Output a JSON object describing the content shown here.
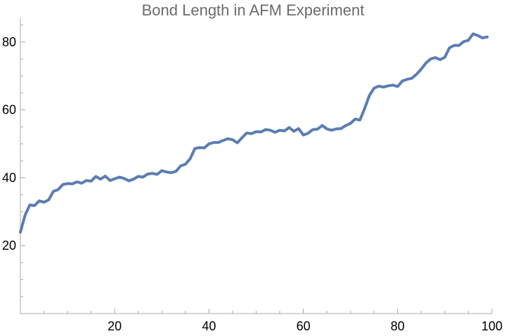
{
  "chart_data": {
    "type": "line",
    "title": "Bond Length in AFM Experiment",
    "xlabel": "",
    "ylabel": "",
    "xlim": [
      0,
      100
    ],
    "ylim": [
      0,
      87
    ],
    "x_ticks": [
      20,
      40,
      60,
      80,
      100
    ],
    "y_ticks": [
      20,
      40,
      60,
      80
    ],
    "grid": false,
    "line_color": "#5b7db1",
    "series": [
      {
        "x": [
          0,
          1,
          2,
          3,
          4,
          5,
          6,
          7,
          8,
          9,
          10,
          11,
          12,
          13,
          14,
          15,
          16,
          17,
          18,
          19,
          20,
          21,
          22,
          23,
          24,
          25,
          26,
          27,
          28,
          29,
          30,
          31,
          32,
          33,
          34,
          35,
          36,
          37,
          38,
          39,
          40,
          41,
          42,
          43,
          44,
          45,
          46,
          47,
          48,
          49,
          50,
          51,
          52,
          53,
          54,
          55,
          56,
          57,
          58,
          59,
          60,
          61,
          62,
          63,
          64,
          65,
          66,
          67,
          68,
          69,
          70,
          71,
          72,
          73,
          74,
          75,
          76,
          77,
          78,
          79,
          80,
          81,
          82,
          83,
          84,
          85,
          86,
          87,
          88,
          89,
          90,
          91,
          92,
          93,
          94,
          95,
          96,
          97,
          98,
          99
        ],
        "values": [
          24.0,
          29.0,
          32.0,
          31.8,
          33.2,
          32.8,
          33.5,
          36.0,
          36.5,
          38.0,
          38.3,
          38.2,
          38.8,
          38.4,
          39.2,
          39.0,
          40.4,
          39.6,
          40.5,
          39.2,
          39.7,
          40.2,
          39.8,
          39.1,
          39.6,
          40.4,
          40.2,
          41.1,
          41.3,
          41.0,
          42.1,
          41.7,
          41.5,
          41.9,
          43.5,
          44.0,
          45.6,
          48.6,
          48.9,
          48.8,
          50.0,
          50.4,
          50.4,
          51.0,
          51.5,
          51.2,
          50.3,
          51.8,
          53.2,
          53.0,
          53.6,
          53.5,
          54.2,
          54.0,
          53.4,
          54.0,
          53.8,
          54.8,
          53.7,
          54.5,
          52.6,
          53.1,
          54.2,
          54.3,
          55.4,
          54.4,
          54.0,
          54.4,
          54.5,
          55.4,
          56.0,
          57.3,
          57.0,
          60.4,
          64.2,
          66.4,
          67.0,
          66.7,
          67.1,
          67.3,
          66.9,
          68.5,
          69.0,
          69.3,
          70.5,
          72.0,
          73.8,
          75.0,
          75.4,
          74.8,
          75.5,
          78.3,
          79.0,
          79.0,
          80.1,
          80.5,
          82.4,
          81.9,
          81.2,
          81.5
        ]
      }
    ]
  }
}
